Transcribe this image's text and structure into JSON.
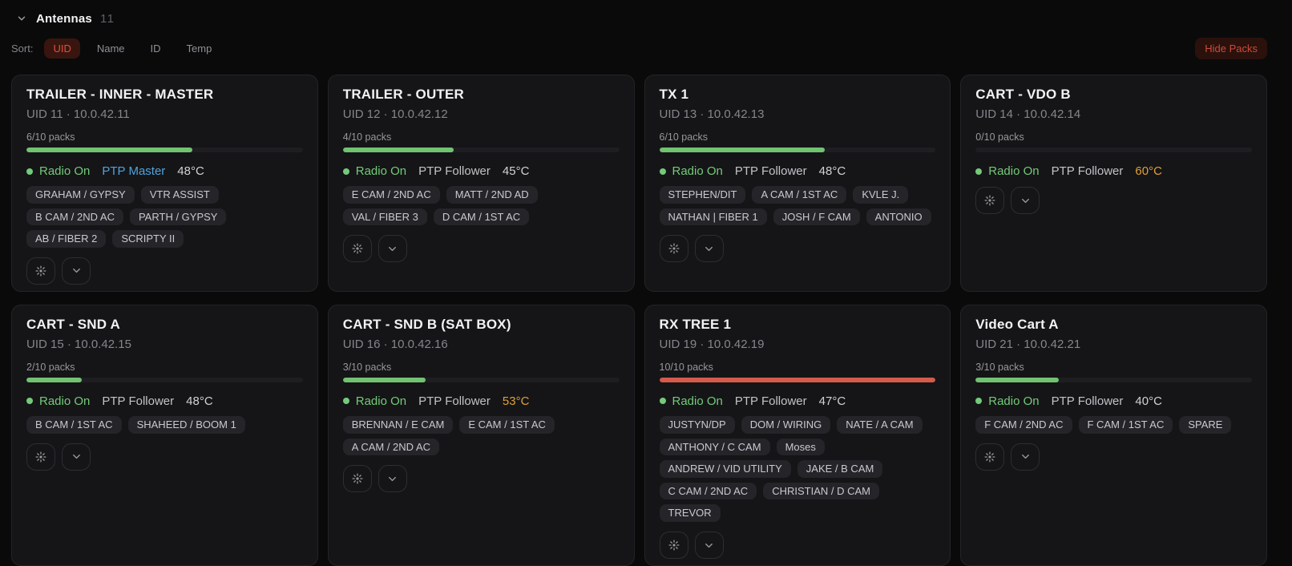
{
  "header": {
    "title": "Antennas",
    "count": "11",
    "hide_packs_label": "Hide Packs"
  },
  "sort": {
    "label": "Sort:",
    "options": [
      {
        "label": "UID",
        "active": true
      },
      {
        "label": "Name",
        "active": false
      },
      {
        "label": "ID",
        "active": false
      },
      {
        "label": "Temp",
        "active": false
      }
    ]
  },
  "icons": {
    "collapse": "chevron-down-icon",
    "identify": "sun-identify-icon",
    "expand": "chevron-down-icon"
  },
  "colors": {
    "accent_red": "#e0503a",
    "hide_packs_red": "#cd4b38",
    "radio_green": "#74ca7a",
    "ptp_master_blue": "#4fa3df",
    "temp_warn_amber": "#dfa039",
    "bar_green": "#72c272",
    "bar_red": "#d45a4c",
    "card_bg": "#151517",
    "page_bg": "#0a0a0b"
  },
  "cards": [
    {
      "title": "TRAILER - INNER - MASTER",
      "subtitle": "UID 11 · 10.0.42.11",
      "packs_label": "6/10 packs",
      "packs_used": 6,
      "packs_total": 10,
      "bar_color": "#72c272",
      "radio_status": "Radio On",
      "ptp_role": "PTP Master",
      "ptp_master": true,
      "temperature": "48°C",
      "temp_warning": false,
      "tags": [
        "GRAHAM / GYPSY",
        "VTR ASSIST",
        "B CAM / 2ND AC",
        "PARTH / GYPSY",
        "AB / FIBER 2",
        "SCRIPTY II"
      ]
    },
    {
      "title": "TRAILER - OUTER",
      "subtitle": "UID 12 · 10.0.42.12",
      "packs_label": "4/10 packs",
      "packs_used": 4,
      "packs_total": 10,
      "bar_color": "#72c272",
      "radio_status": "Radio On",
      "ptp_role": "PTP Follower",
      "ptp_master": false,
      "temperature": "45°C",
      "temp_warning": false,
      "tags": [
        "E CAM / 2ND AC",
        "MATT / 2ND AD",
        "VAL / FIBER 3",
        "D CAM / 1ST AC"
      ]
    },
    {
      "title": "TX 1",
      "subtitle": "UID 13 · 10.0.42.13",
      "packs_label": "6/10 packs",
      "packs_used": 6,
      "packs_total": 10,
      "bar_color": "#72c272",
      "radio_status": "Radio On",
      "ptp_role": "PTP Follower",
      "ptp_master": false,
      "temperature": "48°C",
      "temp_warning": false,
      "tags": [
        "STEPHEN/DIT",
        "A CAM / 1ST AC",
        "KVLE J.",
        "NATHAN | FIBER 1",
        "JOSH / F CAM",
        "ANTONIO"
      ]
    },
    {
      "title": "CART - VDO B",
      "subtitle": "UID 14 · 10.0.42.14",
      "packs_label": "0/10 packs",
      "packs_used": 0,
      "packs_total": 10,
      "bar_color": "#72c272",
      "radio_status": "Radio On",
      "ptp_role": "PTP Follower",
      "ptp_master": false,
      "temperature": "60°C",
      "temp_warning": true,
      "tags": []
    },
    {
      "title": "CART - SND A",
      "subtitle": "UID 15 · 10.0.42.15",
      "packs_label": "2/10 packs",
      "packs_used": 2,
      "packs_total": 10,
      "bar_color": "#72c272",
      "radio_status": "Radio On",
      "ptp_role": "PTP Follower",
      "ptp_master": false,
      "temperature": "48°C",
      "temp_warning": false,
      "tags": [
        "B CAM / 1ST AC",
        "SHAHEED / BOOM 1"
      ]
    },
    {
      "title": "CART - SND B (SAT BOX)",
      "subtitle": "UID 16 · 10.0.42.16",
      "packs_label": "3/10 packs",
      "packs_used": 3,
      "packs_total": 10,
      "bar_color": "#72c272",
      "radio_status": "Radio On",
      "ptp_role": "PTP Follower",
      "ptp_master": false,
      "temperature": "53°C",
      "temp_warning": true,
      "tags": [
        "BRENNAN / E CAM",
        "E CAM / 1ST AC",
        "A CAM / 2ND AC"
      ]
    },
    {
      "title": "RX TREE 1",
      "subtitle": "UID 19 · 10.0.42.19",
      "packs_label": "10/10 packs",
      "packs_used": 10,
      "packs_total": 10,
      "bar_color": "#d45a4c",
      "radio_status": "Radio On",
      "ptp_role": "PTP Follower",
      "ptp_master": false,
      "temperature": "47°C",
      "temp_warning": false,
      "tags": [
        "JUSTYN/DP",
        "DOM / WIRING",
        "NATE / A CAM",
        "ANTHONY / C CAM",
        "Moses",
        "ANDREW / VID UTILITY",
        "JAKE / B CAM",
        "C CAM / 2ND AC",
        "CHRISTIAN / D CAM",
        "TREVOR"
      ]
    },
    {
      "title": "Video Cart A",
      "subtitle": "UID 21 · 10.0.42.21",
      "packs_label": "3/10 packs",
      "packs_used": 3,
      "packs_total": 10,
      "bar_color": "#72c272",
      "radio_status": "Radio On",
      "ptp_role": "PTP Follower",
      "ptp_master": false,
      "temperature": "40°C",
      "temp_warning": false,
      "tags": [
        "F CAM / 2ND AC",
        "F CAM / 1ST AC",
        "SPARE"
      ]
    }
  ]
}
